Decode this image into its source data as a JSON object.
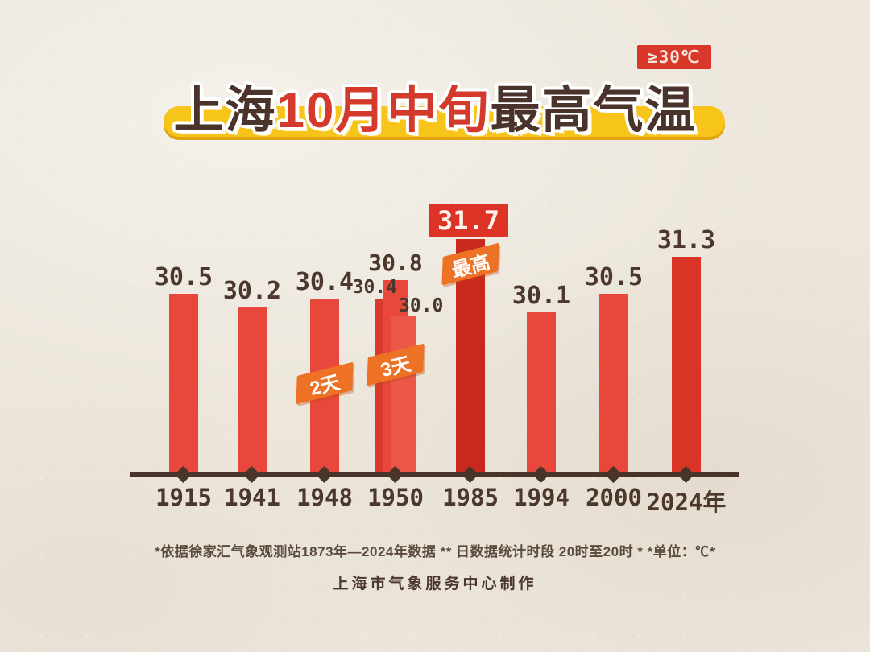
{
  "badge": {
    "label": "≥30℃"
  },
  "title": {
    "part_city": "上海",
    "part_period": "10月中旬",
    "part_rest": "最高气温"
  },
  "chart_data": {
    "type": "bar",
    "title": "上海10月中旬最高气温",
    "unit": "℃",
    "threshold_note": "≥30℃",
    "ylim": [
      26.5,
      32.2
    ],
    "grid": false,
    "legend": "none",
    "categories": [
      "1915",
      "1941",
      "1948",
      "1950",
      "1985",
      "1994",
      "2000",
      "2024年"
    ],
    "groups": [
      {
        "year": "1915",
        "bars": [
          {
            "value": 30.5,
            "label": "30.5",
            "label_pos": "top",
            "color": "#e8473b"
          }
        ]
      },
      {
        "year": "1941",
        "bars": [
          {
            "value": 30.2,
            "label": "30.2",
            "label_pos": "top",
            "color": "#e8473b"
          }
        ]
      },
      {
        "year": "1948",
        "tag": "2天",
        "bars": [
          {
            "value": 30.4,
            "label": "30.4",
            "label_pos": "top",
            "color": "#e8473b"
          }
        ]
      },
      {
        "year": "1950",
        "tag": "3天",
        "bars": [
          {
            "value": 30.4,
            "label": "30.4",
            "label_pos": "left",
            "color": "#d8392d"
          },
          {
            "value": 30.8,
            "label": "30.8",
            "label_pos": "top",
            "color": "#e8473b"
          },
          {
            "value": 30.0,
            "label": "30.0",
            "label_pos": "right",
            "color": "#ec5848"
          }
        ]
      },
      {
        "year": "1985",
        "tag": "最高",
        "bars": [
          {
            "value": 31.7,
            "label": "31.7",
            "label_pos": "top",
            "boxed": true,
            "color": "#c9281c"
          }
        ]
      },
      {
        "year": "1994",
        "bars": [
          {
            "value": 30.1,
            "label": "30.1",
            "label_pos": "top",
            "color": "#e8473b"
          }
        ]
      },
      {
        "year": "2000",
        "bars": [
          {
            "value": 30.5,
            "label": "30.5",
            "label_pos": "top",
            "color": "#e8473b"
          }
        ]
      },
      {
        "year": "2024年",
        "bars": [
          {
            "value": 31.3,
            "label": "31.3",
            "label_pos": "top",
            "color": "#d93426"
          }
        ]
      }
    ]
  },
  "footnote": "*依据徐家汇气象观测站1873年—2024年数据 ** 日数据统计时段 20时至20时 * *单位：℃*",
  "credit": "上海市气象服务中心制作",
  "colors": {
    "background": "#ece6db",
    "bar_red": "#e8473b",
    "bar_dark_red": "#c9281c",
    "bar_2024_red": "#d93426",
    "title_dark": "#4a332a",
    "title_red": "#d43a2b",
    "highlight_yellow": "#f7c41a",
    "tag_orange": "#ee7226",
    "axis_brown": "#4a342a",
    "badge_red": "#d8372a"
  }
}
